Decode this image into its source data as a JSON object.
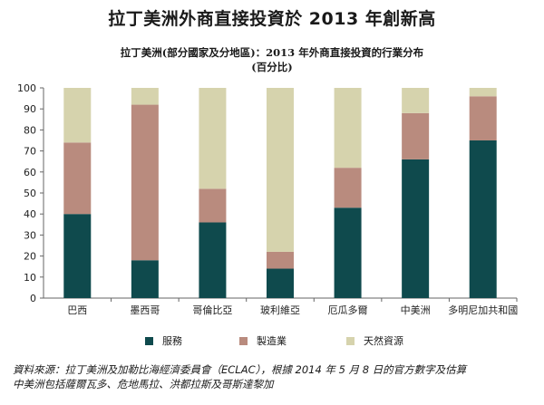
{
  "header": {
    "title": "拉丁美洲外商直接投資於 2013 年創新高"
  },
  "chart_data": {
    "type": "bar",
    "stacked": true,
    "title": "拉丁美洲(部分國家及分地區)：2013 年外商直接投資的行業分布",
    "subtitle": "(百分比)",
    "categories": [
      "巴西",
      "墨西哥",
      "哥倫比亞",
      "玻利維亞",
      "厄瓜多爾",
      "中美洲",
      "多明尼加共和國"
    ],
    "series": [
      {
        "name": "服務",
        "color": "#0f4a4d",
        "values": [
          40,
          18,
          36,
          14,
          43,
          66,
          75
        ]
      },
      {
        "name": "製造業",
        "color": "#b98b7e",
        "values": [
          34,
          74,
          16,
          8,
          19,
          22,
          21
        ]
      },
      {
        "name": "天然資源",
        "color": "#d6d3ad",
        "values": [
          26,
          8,
          48,
          78,
          38,
          12,
          4
        ]
      }
    ],
    "ylim": [
      0,
      100
    ],
    "yticks": [
      0,
      10,
      20,
      30,
      40,
      50,
      60,
      70,
      80,
      90,
      100
    ],
    "xlabel": "",
    "ylabel": "",
    "grid": false,
    "legend_position": "bottom"
  },
  "footer": {
    "source_line1": "資料來源：拉丁美洲及加勒比海經濟委員會（ECLAC），根據 2014 年 5 月 8 日的官方數字及估算",
    "source_line2": "中美洲包括薩爾瓦多、危地馬拉、洪都拉斯及哥斯達黎加"
  }
}
